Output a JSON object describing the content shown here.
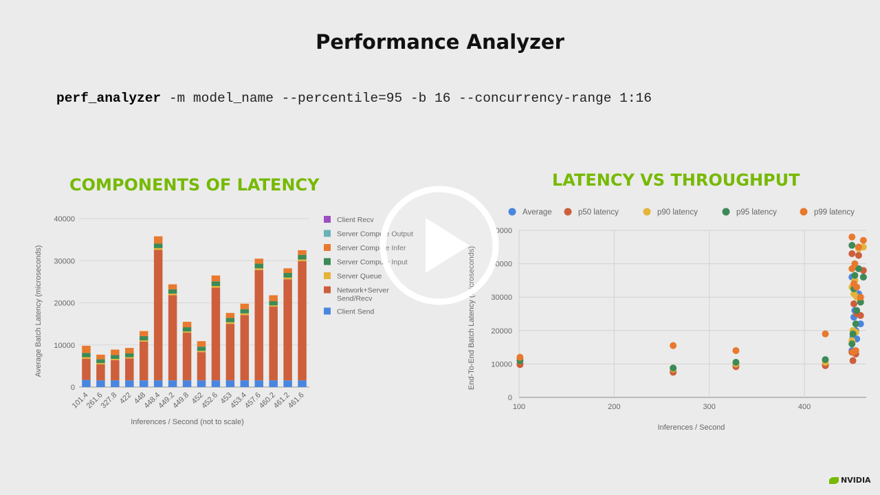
{
  "slide": {
    "title": "Performance Analyzer",
    "command_bold": "perf_analyzer",
    "command_rest": " -m model_name --percentile=95 -b 16 --concurrency-range 1:16",
    "brand": "NVIDIA"
  },
  "colors": {
    "accent": "#76b900",
    "client_recv": "#9c4fc2",
    "server_compute_output": "#6ab0b8",
    "server_compute_infer": "#e8792e",
    "server_compute_input": "#3d8a57",
    "server_queue": "#e4b43b",
    "network": "#cd5f3c",
    "client_send": "#4a86e0"
  },
  "chart_data": [
    {
      "type": "bar",
      "stacked": true,
      "title": "COMPONENTS OF LATENCY",
      "xlabel": "Inferences / Second (not to scale)",
      "ylabel": "Average Batch Latency (microseconds)",
      "ylim": [
        0,
        40000
      ],
      "yticks": [
        "0",
        "10000",
        "20000",
        "30000",
        "40000"
      ],
      "categories": [
        "101.4",
        "261.6",
        "327.8",
        "422",
        "448",
        "448.4",
        "449.2",
        "449.8",
        "452",
        "452.6",
        "453",
        "453.4",
        "457.6",
        "460.2",
        "461.2",
        "461.6"
      ],
      "legend_position": "right",
      "series": [
        {
          "name": "Client Send",
          "color_key": "client_send",
          "values": [
            1700,
            1600,
            1600,
            1600,
            1600,
            1600,
            1600,
            1600,
            1600,
            1600,
            1600,
            1600,
            1600,
            1600,
            1600,
            1600
          ]
        },
        {
          "name": "Network+Server Send/Recv",
          "color_key": "network",
          "values": [
            5000,
            3800,
            4800,
            5200,
            9200,
            31000,
            20200,
            11300,
            6700,
            22000,
            13400,
            15500,
            26200,
            17500,
            24000,
            28300
          ]
        },
        {
          "name": "Server Queue",
          "color_key": "server_queue",
          "values": [
            400,
            300,
            300,
            300,
            300,
            400,
            400,
            300,
            300,
            400,
            400,
            400,
            400,
            300,
            400,
            400
          ]
        },
        {
          "name": "Server Compute Input",
          "color_key": "server_compute_input",
          "values": [
            1000,
            900,
            900,
            900,
            1000,
            1100,
            1000,
            1000,
            1000,
            1100,
            1000,
            1000,
            1100,
            1000,
            1100,
            1100
          ]
        },
        {
          "name": "Server Compute Infer",
          "color_key": "server_compute_infer",
          "values": [
            1700,
            1100,
            1300,
            1300,
            1200,
            1700,
            1200,
            1300,
            1300,
            1400,
            1200,
            1300,
            1200,
            1400,
            1100,
            1100
          ]
        },
        {
          "name": "Server Compute Output",
          "color_key": "server_compute_output",
          "values": [
            0,
            0,
            0,
            0,
            0,
            0,
            0,
            0,
            0,
            0,
            0,
            0,
            0,
            0,
            0,
            0
          ]
        },
        {
          "name": "Client Recv",
          "color_key": "client_recv",
          "values": [
            0,
            0,
            0,
            0,
            0,
            0,
            0,
            0,
            0,
            0,
            0,
            0,
            0,
            0,
            0,
            0
          ]
        }
      ],
      "legend": [
        {
          "label": "Client Recv",
          "color_key": "client_recv"
        },
        {
          "label": "Server Compute Output",
          "color_key": "server_compute_output"
        },
        {
          "label": "Server Compute Infer",
          "color_key": "server_compute_infer"
        },
        {
          "label": "Server Compute Input",
          "color_key": "server_compute_input"
        },
        {
          "label": "Server Queue",
          "color_key": "server_queue"
        },
        {
          "label": "Network+Server Send/Recv",
          "color_key": "network"
        },
        {
          "label": "Client Send",
          "color_key": "client_send"
        }
      ]
    },
    {
      "type": "scatter",
      "title": "LATENCY VS THROUGHPUT",
      "xlabel": "Inferences / Second",
      "ylabel": "End-To-End Batch Latency (microseconds)",
      "xlim": [
        100,
        465
      ],
      "ylim": [
        0,
        50000
      ],
      "xticks": [
        "100",
        "200",
        "300",
        "400"
      ],
      "yticks": [
        "0",
        "10000",
        "20000",
        "30000",
        "40000",
        "50000"
      ],
      "legend_position": "top",
      "grid": true,
      "series": [
        {
          "name": "Average",
          "color_key": "client_send",
          "points": [
            [
              101,
              10000
            ],
            [
              262,
              7800
            ],
            [
              328,
              9500
            ],
            [
              422,
              9800
            ],
            [
              450,
              14000
            ],
            [
              451,
              18000
            ],
            [
              452,
              24000
            ],
            [
              453,
              26000
            ],
            [
              455,
              17500
            ],
            [
              457,
              31000
            ],
            [
              459,
              22000
            ],
            [
              462,
              36000
            ],
            [
              450,
              36000
            ],
            [
              454,
              20000
            ]
          ]
        },
        {
          "name": "p50 latency",
          "color_key": "network",
          "points": [
            [
              101,
              9800
            ],
            [
              262,
              7500
            ],
            [
              328,
              9200
            ],
            [
              422,
              9500
            ],
            [
              450,
              13500
            ],
            [
              451,
              11000
            ],
            [
              452,
              28000
            ],
            [
              453,
              33000
            ],
            [
              455,
              25000
            ],
            [
              457,
              42500
            ],
            [
              459,
              24500
            ],
            [
              462,
              38000
            ],
            [
              450,
              43000
            ],
            [
              454,
              13000
            ]
          ]
        },
        {
          "name": "p90 latency",
          "color_key": "server_queue",
          "points": [
            [
              101,
              11500
            ],
            [
              262,
              8500
            ],
            [
              328,
              10000
            ],
            [
              422,
              10500
            ],
            [
              450,
              17000
            ],
            [
              451,
              20000
            ],
            [
              452,
              31000
            ],
            [
              453,
              35000
            ],
            [
              455,
              30000
            ],
            [
              457,
              44500
            ],
            [
              459,
              29000
            ],
            [
              462,
              45000
            ],
            [
              450,
              33000
            ],
            [
              454,
              19500
            ]
          ]
        },
        {
          "name": "p95 latency",
          "color_key": "server_compute_input",
          "points": [
            [
              101,
              11000
            ],
            [
              262,
              8800
            ],
            [
              328,
              10500
            ],
            [
              422,
              11300
            ],
            [
              450,
              16000
            ],
            [
              451,
              19000
            ],
            [
              452,
              32500
            ],
            [
              453,
              36500
            ],
            [
              455,
              26000
            ],
            [
              457,
              38500
            ],
            [
              459,
              28500
            ],
            [
              462,
              36000
            ],
            [
              450,
              45500
            ],
            [
              454,
              22000
            ]
          ]
        },
        {
          "name": "p99 latency",
          "color_key": "server_compute_infer",
          "points": [
            [
              101,
              12000
            ],
            [
              262,
              15500
            ],
            [
              328,
              14000
            ],
            [
              422,
              19000
            ],
            [
              450,
              48000
            ],
            [
              451,
              13500
            ],
            [
              452,
              34000
            ],
            [
              453,
              40000
            ],
            [
              455,
              33000
            ],
            [
              457,
              45000
            ],
            [
              459,
              30000
            ],
            [
              462,
              47000
            ],
            [
              450,
              38500
            ],
            [
              454,
              14000
            ]
          ]
        }
      ]
    }
  ]
}
